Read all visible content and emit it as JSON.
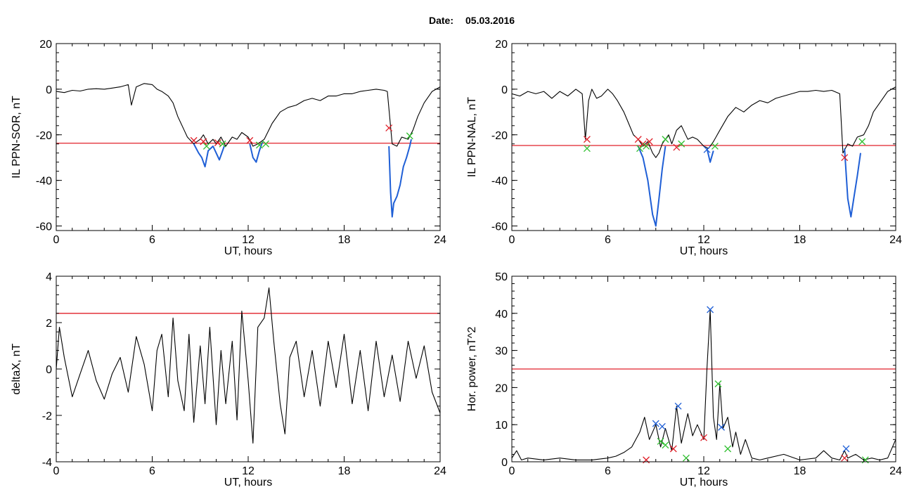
{
  "page": {
    "date_label": "Date:",
    "date_value": "05.03.2016"
  },
  "colors": {
    "trace": "#000000",
    "segment": "#1f5fd6",
    "threshold": "#e0202a",
    "marker_red": "#e0202a",
    "marker_green": "#2fbf2f",
    "marker_blue": "#1f5fd6"
  },
  "chart_data": [
    {
      "id": "il-ppn-sor",
      "type": "line",
      "xlabel": "UT, hours",
      "ylabel": "IL PPN-SOR, nT",
      "xlim": [
        0,
        24
      ],
      "ylim": [
        -62,
        20
      ],
      "xticks": [
        0,
        6,
        12,
        18,
        24
      ],
      "yticks": [
        -60,
        -40,
        -20,
        0,
        20
      ],
      "threshold": -23.7,
      "series": [
        {
          "style": "black",
          "x": [
            0,
            0.5,
            1,
            1.5,
            2,
            2.5,
            3,
            3.5,
            4,
            4.5,
            4.7,
            5,
            5.5,
            6,
            6.3,
            6.6,
            7,
            7.3,
            7.6,
            8,
            8.2,
            8.6,
            9,
            9.2,
            9.5,
            9.8,
            10,
            10.3,
            10.6,
            11,
            11.3,
            11.6,
            12,
            12.3,
            12.6,
            13,
            13.5,
            14,
            14.5,
            15,
            15.5,
            16,
            16.5,
            17,
            17.5,
            18,
            18.5,
            19,
            19.5,
            20,
            20.5,
            20.7,
            21,
            21.3,
            21.6,
            22,
            22.3,
            22.6,
            23,
            23.5,
            24
          ],
          "y": [
            -1,
            -1.5,
            -0.5,
            -0.8,
            0,
            0.2,
            0,
            0.5,
            1,
            2,
            -7,
            1,
            2.5,
            2,
            0,
            -1,
            -3,
            -6,
            -12,
            -18,
            -21,
            -24,
            -22,
            -20,
            -24,
            -22,
            -24,
            -21,
            -25,
            -21,
            -22,
            -19,
            -21,
            -25,
            -24,
            -22,
            -15,
            -10,
            -8,
            -7,
            -5,
            -4,
            -5,
            -3,
            -3,
            -2,
            -2,
            -1,
            -0.5,
            0,
            -0.5,
            -1,
            -24,
            -25,
            -21,
            -22,
            -18,
            -12,
            -6,
            -1,
            1
          ]
        },
        {
          "style": "blue",
          "x": [
            8.6,
            8.9,
            9.1,
            9.3,
            9.5,
            9.8,
            10,
            10.2,
            10.5
          ],
          "y": [
            -24,
            -28,
            -30,
            -34,
            -27,
            -25,
            -28,
            -31,
            -25
          ]
        },
        {
          "style": "blue",
          "x": [
            12.1,
            12.3,
            12.5,
            12.7,
            12.9
          ],
          "y": [
            -24,
            -30,
            -32,
            -27,
            -23
          ]
        },
        {
          "style": "blue",
          "x": [
            20.8,
            20.9,
            21.0,
            21.1,
            21.3,
            21.5,
            21.7,
            21.9,
            22.1,
            22.2
          ],
          "y": [
            -25,
            -45,
            -56,
            -50,
            -47,
            -42,
            -34,
            -30,
            -25,
            -22
          ]
        }
      ],
      "markers": [
        {
          "x": 8.6,
          "y": -22.5,
          "color": "red"
        },
        {
          "x": 9.2,
          "y": -23,
          "color": "red"
        },
        {
          "x": 9.4,
          "y": -25,
          "color": "green"
        },
        {
          "x": 10.1,
          "y": -23.5,
          "color": "red"
        },
        {
          "x": 10.4,
          "y": -24,
          "color": "green"
        },
        {
          "x": 12.1,
          "y": -22.5,
          "color": "red"
        },
        {
          "x": 12.7,
          "y": -24.5,
          "color": "green"
        },
        {
          "x": 13.1,
          "y": -24,
          "color": "green"
        },
        {
          "x": 20.8,
          "y": -17,
          "color": "red"
        },
        {
          "x": 22.1,
          "y": -20.5,
          "color": "green"
        }
      ]
    },
    {
      "id": "il-ppn-nal",
      "type": "line",
      "xlabel": "UT, hours",
      "ylabel": "IL PPN-NAL, nT",
      "xlim": [
        0,
        24
      ],
      "ylim": [
        -62,
        20
      ],
      "xticks": [
        0,
        6,
        12,
        18,
        24
      ],
      "yticks": [
        -60,
        -40,
        -20,
        0,
        20
      ],
      "threshold": -24.7,
      "series": [
        {
          "style": "black",
          "x": [
            0,
            0.5,
            1,
            1.5,
            2,
            2.5,
            3,
            3.5,
            4,
            4.4,
            4.6,
            4.8,
            5,
            5.3,
            5.6,
            6,
            6.3,
            6.6,
            7,
            7.3,
            7.6,
            7.9,
            8.2,
            8.5,
            8.8,
            9,
            9.2,
            9.4,
            9.6,
            9.8,
            10,
            10.3,
            10.6,
            11,
            11.3,
            11.6,
            12,
            12.3,
            12.6,
            13,
            13.5,
            14,
            14.5,
            15,
            15.5,
            16,
            16.5,
            17,
            17.5,
            18,
            18.5,
            19,
            19.5,
            20,
            20.5,
            20.7,
            21,
            21.3,
            21.6,
            22,
            22.3,
            22.6,
            23,
            23.5,
            24
          ],
          "y": [
            -2,
            -3,
            -1,
            -2,
            -1,
            -4,
            -1,
            -3,
            0,
            -2,
            -22,
            -5,
            0,
            -4,
            -3,
            0,
            -2,
            -5,
            -10,
            -15,
            -20,
            -22,
            -25,
            -23,
            -28,
            -30,
            -28,
            -24,
            -22,
            -20,
            -24,
            -18,
            -16,
            -22,
            -21,
            -22,
            -25,
            -26,
            -23,
            -18,
            -12,
            -8,
            -10,
            -7,
            -5,
            -6,
            -4,
            -3,
            -2,
            -1,
            -1,
            -0.5,
            -1,
            -0.5,
            -2,
            -28,
            -24,
            -25,
            -21,
            -20,
            -16,
            -10,
            -6,
            -1,
            1
          ]
        },
        {
          "style": "blue",
          "x": [
            7.9,
            8.2,
            8.5,
            8.8,
            9.0,
            9.2,
            9.4,
            9.6
          ],
          "y": [
            -25,
            -30,
            -40,
            -55,
            -60,
            -48,
            -35,
            -25
          ]
        },
        {
          "style": "blue",
          "x": [
            12.2,
            12.4,
            12.6
          ],
          "y": [
            -26,
            -32,
            -27
          ]
        },
        {
          "style": "blue",
          "x": [
            20.8,
            21.0,
            21.2,
            21.4,
            21.6,
            21.8
          ],
          "y": [
            -26,
            -48,
            -56,
            -47,
            -38,
            -28
          ]
        }
      ],
      "markers": [
        {
          "x": 4.7,
          "y": -22,
          "color": "red"
        },
        {
          "x": 4.7,
          "y": -26,
          "color": "green"
        },
        {
          "x": 7.9,
          "y": -22,
          "color": "red"
        },
        {
          "x": 8.0,
          "y": -26,
          "color": "green"
        },
        {
          "x": 8.2,
          "y": -24,
          "color": "red"
        },
        {
          "x": 8.4,
          "y": -25,
          "color": "green"
        },
        {
          "x": 8.6,
          "y": -23,
          "color": "red"
        },
        {
          "x": 9.6,
          "y": -22,
          "color": "green"
        },
        {
          "x": 10.3,
          "y": -25.5,
          "color": "red"
        },
        {
          "x": 10.6,
          "y": -24,
          "color": "green"
        },
        {
          "x": 12.2,
          "y": -26.5,
          "color": "blue"
        },
        {
          "x": 12.7,
          "y": -25,
          "color": "green"
        },
        {
          "x": 20.8,
          "y": -30,
          "color": "red"
        },
        {
          "x": 21.9,
          "y": -23,
          "color": "green"
        }
      ]
    },
    {
      "id": "deltax",
      "type": "line",
      "xlabel": "UT, hours",
      "ylabel": "deltaX, nT",
      "xlim": [
        0,
        24
      ],
      "ylim": [
        -4,
        4
      ],
      "xticks": [
        0,
        6,
        12,
        18,
        24
      ],
      "yticks": [
        -4,
        -2,
        0,
        2,
        4
      ],
      "threshold": 2.4,
      "series": [
        {
          "style": "black",
          "x": [
            0,
            0.2,
            0.5,
            1,
            1.5,
            2,
            2.5,
            3,
            3.5,
            4,
            4.5,
            5,
            5.5,
            6,
            6.3,
            6.6,
            7,
            7.3,
            7.6,
            8,
            8.3,
            8.6,
            9,
            9.3,
            9.6,
            10,
            10.3,
            10.6,
            11,
            11.3,
            11.6,
            12,
            12.3,
            12.6,
            13,
            13.3,
            13.6,
            14,
            14.3,
            14.6,
            15,
            15.5,
            16,
            16.5,
            17,
            17.5,
            18,
            18.5,
            19,
            19.5,
            20,
            20.5,
            21,
            21.5,
            22,
            22.5,
            23,
            23.5,
            24
          ],
          "y": [
            0,
            1.8,
            0.5,
            -1.2,
            -0.2,
            0.8,
            -0.5,
            -1.3,
            -0.2,
            0.5,
            -1,
            1.4,
            0.2,
            -1.8,
            0.8,
            1.5,
            -1.2,
            2.2,
            -0.5,
            -1.8,
            1.5,
            -2.3,
            1,
            -1.5,
            1.8,
            -2.4,
            0.8,
            -1.5,
            1.2,
            -2.2,
            2.5,
            -0.5,
            -3.2,
            1.8,
            2.2,
            3.5,
            1.2,
            -1.5,
            -2.8,
            0.5,
            1.2,
            -1.2,
            0.8,
            -1.6,
            1.2,
            -0.8,
            1.5,
            -1.5,
            0.8,
            -1.8,
            1.2,
            -1.2,
            0.6,
            -1.4,
            1.2,
            -0.4,
            1.0,
            -1.0,
            -1.9
          ]
        }
      ],
      "markers": []
    },
    {
      "id": "hor-power",
      "type": "line",
      "xlabel": "UT, hours",
      "ylabel": "Hor. power, nT^2",
      "xlim": [
        0,
        24
      ],
      "ylim": [
        0,
        50
      ],
      "xticks": [
        0,
        6,
        12,
        18,
        24
      ],
      "yticks": [
        0,
        10,
        20,
        30,
        40,
        50
      ],
      "threshold": 25,
      "series": [
        {
          "style": "black",
          "x": [
            0,
            0.3,
            0.6,
            1,
            2,
            3,
            4,
            5,
            6,
            6.5,
            7,
            7.5,
            8,
            8.3,
            8.6,
            9,
            9.3,
            9.6,
            10,
            10.3,
            10.6,
            11,
            11.3,
            11.6,
            12,
            12.2,
            12.4,
            12.6,
            12.8,
            13,
            13.2,
            13.5,
            13.8,
            14,
            14.3,
            14.6,
            15,
            15.5,
            16,
            17,
            18,
            19,
            19.5,
            20,
            20.5,
            20.8,
            21,
            21.5,
            22,
            22.5,
            23,
            23.5,
            24
          ],
          "y": [
            1,
            3,
            0.5,
            1,
            0.5,
            1,
            0.5,
            0.5,
            1,
            1.5,
            2.5,
            4,
            8,
            12,
            6,
            10,
            4,
            9,
            3,
            15,
            5,
            13,
            7,
            10,
            6,
            25,
            41,
            12,
            6,
            21,
            9,
            12,
            4,
            8,
            2,
            6,
            1,
            0.5,
            1,
            2,
            0.5,
            1,
            3,
            1,
            0.5,
            3,
            1,
            2,
            0.5,
            1,
            0.5,
            1,
            6
          ]
        }
      ],
      "markers": [
        {
          "x": 8.4,
          "y": 0.5,
          "color": "red"
        },
        {
          "x": 9.0,
          "y": 10.3,
          "color": "blue"
        },
        {
          "x": 9.4,
          "y": 9.5,
          "color": "blue"
        },
        {
          "x": 9.3,
          "y": 5.5,
          "color": "green"
        },
        {
          "x": 9.6,
          "y": 4.5,
          "color": "green"
        },
        {
          "x": 10.1,
          "y": 3.5,
          "color": "red"
        },
        {
          "x": 10.4,
          "y": 15,
          "color": "blue"
        },
        {
          "x": 10.9,
          "y": 1,
          "color": "green"
        },
        {
          "x": 12.0,
          "y": 6.5,
          "color": "red"
        },
        {
          "x": 12.4,
          "y": 41,
          "color": "blue"
        },
        {
          "x": 12.9,
          "y": 21,
          "color": "green"
        },
        {
          "x": 13.1,
          "y": 9.3,
          "color": "blue"
        },
        {
          "x": 13.5,
          "y": 3.5,
          "color": "green"
        },
        {
          "x": 20.8,
          "y": 1,
          "color": "red"
        },
        {
          "x": 20.9,
          "y": 3.5,
          "color": "blue"
        },
        {
          "x": 22.1,
          "y": 0.5,
          "color": "green"
        }
      ]
    }
  ]
}
